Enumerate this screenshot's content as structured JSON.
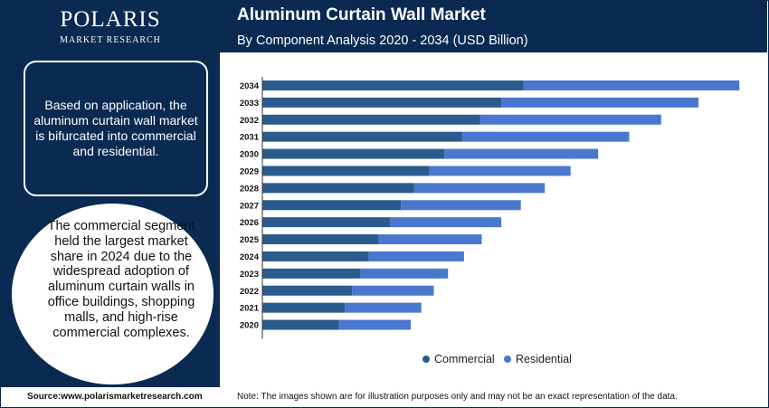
{
  "logo": {
    "name": "POLARIS",
    "tagline": "MARKET RESEARCH"
  },
  "info_box": {
    "text": "Based on application, the aluminum curtain wall market is bifurcated into commercial and residential."
  },
  "info_circle": {
    "text": "The commercial segment held the largest market share in 2024 due to the widespread adoption of aluminum curtain walls in office buildings, shopping malls, and high-rise commercial complexes."
  },
  "header": {
    "title": "Aluminum Curtain Wall Market",
    "subtitle": "By Component Analysis 2020 - 2034 (USD Billion)"
  },
  "footer": {
    "source": "Source:www.polarismarketresearch.com",
    "note": "Note: The images shown are for illustration purposes only and may not be an exact representation of the data."
  },
  "colors": {
    "navy": "#0a2a52",
    "commercial": "#2a5b8c",
    "residential": "#4a78cf"
  },
  "chart_data": {
    "type": "bar",
    "orientation": "horizontal",
    "stacked": true,
    "categories": [
      "2034",
      "2033",
      "2032",
      "2031",
      "2030",
      "2029",
      "2028",
      "2027",
      "2026",
      "2025",
      "2024",
      "2023",
      "2022",
      "2021",
      "2020"
    ],
    "series": [
      {
        "name": "Commercial",
        "values": [
          29.4,
          26.9,
          24.5,
          22.5,
          20.5,
          18.8,
          17.1,
          15.6,
          14.4,
          13.1,
          12.0,
          11.0,
          10.1,
          9.3,
          8.6
        ]
      },
      {
        "name": "Residential",
        "values": [
          24.3,
          22.2,
          20.4,
          18.8,
          17.3,
          15.9,
          14.7,
          13.5,
          12.5,
          11.6,
          10.7,
          9.9,
          9.2,
          8.6,
          8.1
        ]
      }
    ],
    "legend": [
      "Commercial",
      "Residential"
    ],
    "legend_position": "bottom",
    "xlim": [
      0,
      55
    ],
    "grid": false
  }
}
